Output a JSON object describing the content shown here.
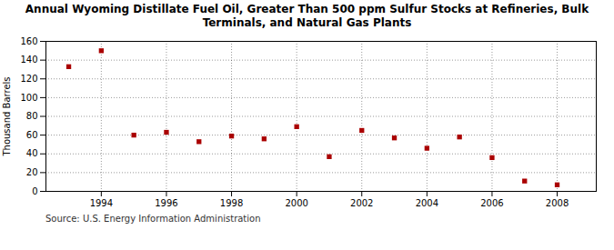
{
  "chart_data": {
    "type": "scatter",
    "title": "Annual Wyoming Distillate Fuel Oil, Greater Than 500 ppm Sulfur Stocks at Refineries, Bulk\nTerminals, and Natural Gas Plants",
    "ylabel": "Thousand Barrels",
    "annotation": "Source: U.S. Energy Information Administration",
    "x": [
      1993,
      1994,
      1995,
      1996,
      1997,
      1998,
      1999,
      2000,
      2001,
      2002,
      2003,
      2004,
      2005,
      2006,
      2007,
      2008
    ],
    "values": [
      133,
      150,
      60,
      63,
      53,
      59,
      56,
      69,
      37,
      65,
      57,
      46,
      58,
      36,
      11,
      7
    ],
    "color": "#aa0000",
    "marker": "square",
    "xlim": [
      1992.3,
      2009.2
    ],
    "xticks": [
      1994,
      1996,
      1998,
      2000,
      2002,
      2004,
      2006,
      2008
    ],
    "ylim": [
      0,
      160
    ],
    "yticks": [
      0,
      20,
      40,
      60,
      80,
      100,
      120,
      140,
      160
    ],
    "grid": true
  }
}
